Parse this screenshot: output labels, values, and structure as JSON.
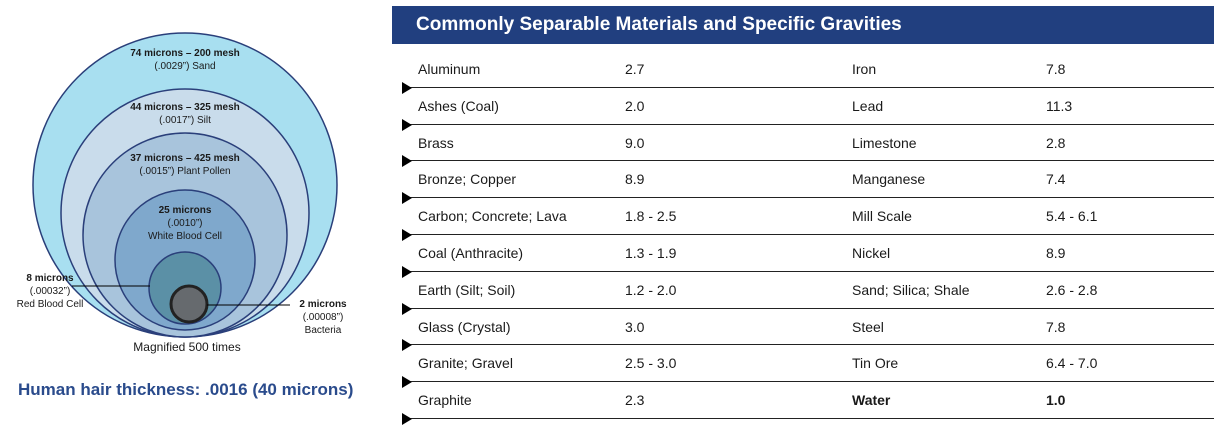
{
  "diagram": {
    "circles": [
      {
        "size_label": "74 microns – 200 mesh",
        "desc": "(.0029”) Sand",
        "color": "#a8dff0"
      },
      {
        "size_label": "44 microns – 325 mesh",
        "desc": "(.0017”) Silt",
        "color": "#c9dceb"
      },
      {
        "size_label": "37 microns – 425 mesh",
        "desc": "(.0015”) Plant Pollen",
        "color": "#a8c4dc"
      },
      {
        "size_label": "25 microns",
        "desc1": "(.0010”)",
        "desc2": "White Blood Cell",
        "color": "#7fa8cc"
      },
      {
        "color": "#5b90a6"
      },
      {
        "color": "#666a6e"
      }
    ],
    "red_cell": {
      "size_label": "8 microns",
      "desc1": "(.00032”)",
      "desc2": "Red Blood Cell"
    },
    "bacteria": {
      "size_label": "2 microns",
      "desc1": "(.00008”)",
      "desc2": "Bacteria"
    },
    "magnified": "Magnified 500 times",
    "hair_thickness": "Human hair thickness: .0016 (40 microns)"
  },
  "table": {
    "title": "Commonly Separable Materials and Specific Gravities",
    "header_color": "#213f7f",
    "rows": [
      {
        "m1": "Aluminum",
        "g1": "2.7",
        "m2": "Iron",
        "g2": "7.8"
      },
      {
        "m1": "Ashes (Coal)",
        "g1": "2.0",
        "m2": "Lead",
        "g2": "11.3"
      },
      {
        "m1": "Brass",
        "g1": "9.0",
        "m2": "Limestone",
        "g2": "2.8"
      },
      {
        "m1": "Bronze; Copper",
        "g1": "8.9",
        "m2": "Manganese",
        "g2": "7.4"
      },
      {
        "m1": "Carbon; Concrete; Lava",
        "g1": "1.8 - 2.5",
        "m2": "Mill Scale",
        "g2": "5.4 - 6.1"
      },
      {
        "m1": "Coal (Anthracite)",
        "g1": "1.3 - 1.9",
        "m2": "Nickel",
        "g2": "8.9"
      },
      {
        "m1": "Earth (Silt; Soil)",
        "g1": "1.2 - 2.0",
        "m2": "Sand; Silica; Shale",
        "g2": "2.6 - 2.8"
      },
      {
        "m1": "Glass (Crystal)",
        "g1": "3.0",
        "m2": "Steel",
        "g2": "7.8"
      },
      {
        "m1": "Granite; Gravel",
        "g1": "2.5 - 3.0",
        "m2": "Tin Ore",
        "g2": "6.4 - 7.0"
      },
      {
        "m1": "Graphite",
        "g1": "2.3",
        "m2": "Water",
        "g2": "1.0"
      }
    ]
  }
}
